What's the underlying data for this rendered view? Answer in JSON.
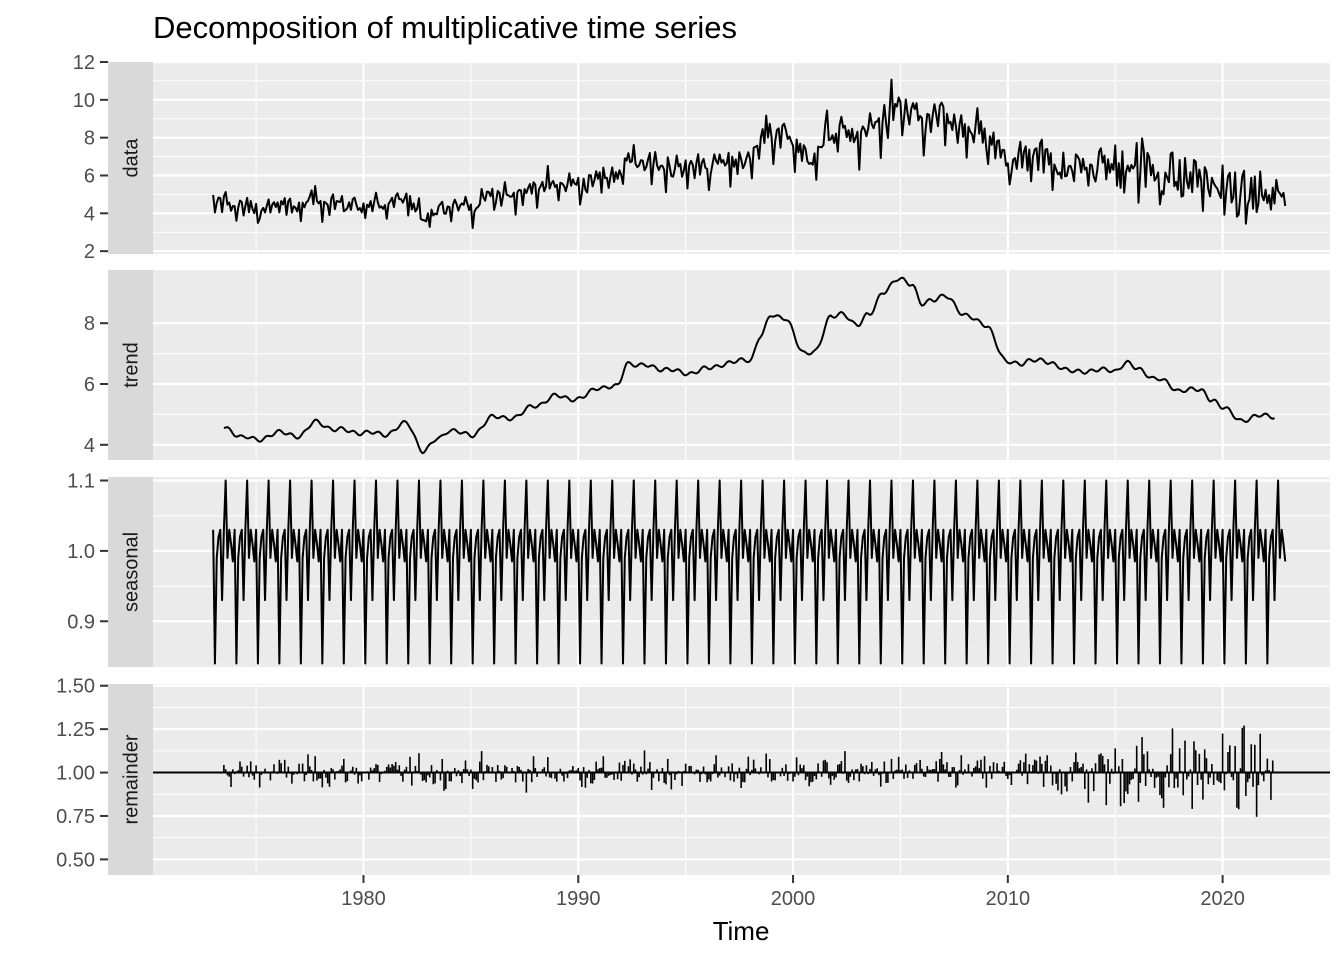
{
  "chart_data": {
    "type": "line",
    "title": "Decomposition of multiplicative time series",
    "xlabel": "Time",
    "x_ticks": [
      1980,
      1990,
      2000,
      2010,
      2020
    ],
    "x_range": [
      1970.2,
      2025.0
    ],
    "start_year": 1973.0,
    "frequency": 12,
    "grid": true,
    "panels": [
      {
        "name": "data",
        "ylim": [
          1.85,
          12.0
        ],
        "y_ticks": [
          2,
          4,
          6,
          8,
          10,
          12
        ],
        "y_tick_labels": [
          "2",
          "4",
          "6",
          "8",
          "10",
          "12"
        ],
        "geom": "line"
      },
      {
        "name": "trend",
        "ylim": [
          3.5,
          9.75
        ],
        "y_ticks": [
          4,
          6,
          8
        ],
        "y_tick_labels": [
          "4",
          "6",
          "8"
        ],
        "geom": "line"
      },
      {
        "name": "seasonal",
        "ylim": [
          0.835,
          1.105
        ],
        "y_ticks": [
          0.9,
          1.0,
          1.1
        ],
        "y_tick_labels": [
          "0.9",
          "1.0",
          "1.1"
        ],
        "geom": "line"
      },
      {
        "name": "remainder",
        "ylim": [
          0.41,
          1.51
        ],
        "y_ticks": [
          0.5,
          0.75,
          1.0,
          1.25,
          1.5
        ],
        "y_tick_labels": [
          "0.50",
          "0.75",
          "1.00",
          "1.25",
          "1.50"
        ],
        "geom": "segment",
        "baseline": 1.0
      }
    ],
    "trend_knots": [
      [
        1973.4,
        4.57
      ],
      [
        1974.5,
        4.25
      ],
      [
        1975.0,
        4.15
      ],
      [
        1976.0,
        4.4
      ],
      [
        1977.0,
        4.3
      ],
      [
        1977.8,
        4.75
      ],
      [
        1978.7,
        4.5
      ],
      [
        1980.0,
        4.4
      ],
      [
        1981.0,
        4.35
      ],
      [
        1982.0,
        4.7
      ],
      [
        1982.8,
        3.8
      ],
      [
        1983.5,
        4.2
      ],
      [
        1984.0,
        4.5
      ],
      [
        1985.0,
        4.3
      ],
      [
        1986.0,
        4.9
      ],
      [
        1987.0,
        4.9
      ],
      [
        1988.0,
        5.3
      ],
      [
        1989.0,
        5.6
      ],
      [
        1990.0,
        5.5
      ],
      [
        1991.0,
        5.9
      ],
      [
        1991.8,
        5.9
      ],
      [
        1992.3,
        6.7
      ],
      [
        1993.0,
        6.6
      ],
      [
        1994.0,
        6.5
      ],
      [
        1995.0,
        6.35
      ],
      [
        1996.0,
        6.5
      ],
      [
        1997.0,
        6.7
      ],
      [
        1998.0,
        6.8
      ],
      [
        1998.5,
        7.6
      ],
      [
        1999.0,
        8.25
      ],
      [
        1999.6,
        8.2
      ],
      [
        2000.5,
        7.0
      ],
      [
        2001.0,
        7.1
      ],
      [
        2001.8,
        8.2
      ],
      [
        2002.3,
        8.35
      ],
      [
        2003.0,
        7.9
      ],
      [
        2003.5,
        8.3
      ],
      [
        2004.2,
        9.0
      ],
      [
        2005.0,
        9.5
      ],
      [
        2005.5,
        9.3
      ],
      [
        2006.0,
        8.6
      ],
      [
        2006.5,
        8.8
      ],
      [
        2007.0,
        8.9
      ],
      [
        2008.0,
        8.3
      ],
      [
        2009.0,
        7.9
      ],
      [
        2010.0,
        6.7
      ],
      [
        2010.5,
        6.65
      ],
      [
        2011.0,
        6.8
      ],
      [
        2012.0,
        6.7
      ],
      [
        2013.0,
        6.4
      ],
      [
        2014.0,
        6.45
      ],
      [
        2015.0,
        6.45
      ],
      [
        2015.5,
        6.7
      ],
      [
        2016.0,
        6.5
      ],
      [
        2017.0,
        6.15
      ],
      [
        2018.0,
        5.8
      ],
      [
        2019.0,
        5.8
      ],
      [
        2019.5,
        5.5
      ],
      [
        2020.0,
        5.2
      ],
      [
        2021.0,
        4.8
      ],
      [
        2022.0,
        5.0
      ],
      [
        2022.8,
        4.85
      ]
    ],
    "seasonal_pattern": [
      1.03,
      0.84,
      0.99,
      1.02,
      1.03,
      0.93,
      1.03,
      1.1,
      0.99,
      1.03,
      1.01,
      0.985
    ],
    "remainder_sd": [
      [
        1973,
        0.06
      ],
      [
        2010,
        0.07
      ],
      [
        2013,
        0.12
      ],
      [
        2016,
        0.16
      ],
      [
        2019,
        0.18
      ],
      [
        2021,
        0.15
      ],
      [
        2023,
        0.12
      ]
    ]
  }
}
